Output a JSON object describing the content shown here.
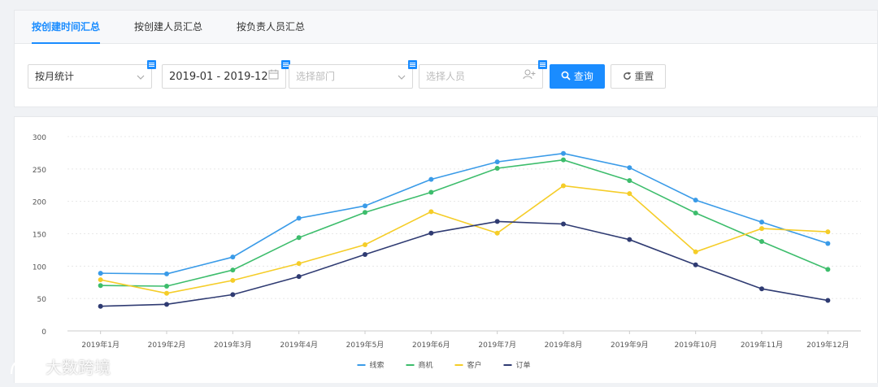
{
  "tabs": [
    {
      "label": "按创建时间汇总",
      "active": true
    },
    {
      "label": "按创建人员汇总",
      "active": false
    },
    {
      "label": "按负责人员汇总",
      "active": false
    }
  ],
  "filters": {
    "period": {
      "value": "按月统计"
    },
    "date_range": {
      "value": "2019-01 - 2019-12"
    },
    "department": {
      "placeholder": "选择部门"
    },
    "person": {
      "placeholder": "选择人员"
    }
  },
  "buttons": {
    "query": "查询",
    "reset": "重置"
  },
  "colors": {
    "accent": "#1a8cff"
  },
  "watermark": {
    "text": "大数跨境"
  },
  "chart_data": {
    "type": "line",
    "categories": [
      "2019年1月",
      "2019年2月",
      "2019年3月",
      "2019年4月",
      "2019年5月",
      "2019年6月",
      "2019年7月",
      "2019年8月",
      "2019年9月",
      "2019年10月",
      "2019年11月",
      "2019年12月"
    ],
    "ylim": [
      0,
      300
    ],
    "yticks": [
      0,
      50,
      100,
      150,
      200,
      250,
      300
    ],
    "grid": true,
    "legend_position": "bottom-center",
    "series": [
      {
        "name": "线索",
        "color": "#3a9be8",
        "values": [
          89,
          88,
          114,
          174,
          193,
          234,
          261,
          274,
          252,
          202,
          168,
          135
        ]
      },
      {
        "name": "商机",
        "color": "#3dbd6c",
        "values": [
          70,
          69,
          94,
          144,
          183,
          214,
          251,
          264,
          232,
          182,
          138,
          95
        ]
      },
      {
        "name": "客户",
        "color": "#f5cd28",
        "values": [
          79,
          58,
          78,
          104,
          133,
          184,
          151,
          224,
          212,
          122,
          158,
          153
        ]
      },
      {
        "name": "订单",
        "color": "#2f3b72",
        "values": [
          38,
          41,
          56,
          84,
          118,
          151,
          169,
          165,
          141,
          102,
          65,
          47
        ]
      }
    ]
  }
}
